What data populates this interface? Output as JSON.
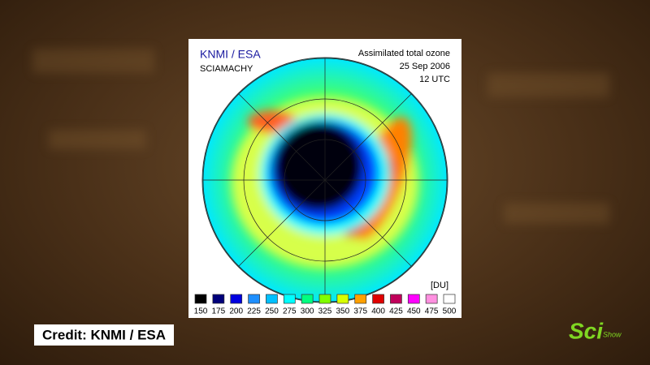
{
  "header": {
    "agency": "KNMI / ESA",
    "instrument": "SCIAMACHY",
    "product": "Assimilated total ozone",
    "date": "25 Sep 2006",
    "time": "12 UTC"
  },
  "legend": {
    "unit": "[DU]",
    "items": [
      {
        "value": "150",
        "color": "#000000"
      },
      {
        "value": "175",
        "color": "#00007a"
      },
      {
        "value": "200",
        "color": "#0000e0"
      },
      {
        "value": "225",
        "color": "#1e8fff"
      },
      {
        "value": "250",
        "color": "#00c0ff"
      },
      {
        "value": "275",
        "color": "#00ffff"
      },
      {
        "value": "300",
        "color": "#00ff80"
      },
      {
        "value": "325",
        "color": "#80ff00"
      },
      {
        "value": "350",
        "color": "#d8ff00"
      },
      {
        "value": "375",
        "color": "#ffa000"
      },
      {
        "value": "400",
        "color": "#e00000"
      },
      {
        "value": "425",
        "color": "#c0005a"
      },
      {
        "value": "450",
        "color": "#ff00ff"
      },
      {
        "value": "475",
        "color": "#ff90e0"
      },
      {
        "value": "500",
        "color": "#ffffff"
      }
    ]
  },
  "caption": "Credit: KNMI / ESA",
  "logo": {
    "main": "Sci",
    "sub": "Show"
  }
}
